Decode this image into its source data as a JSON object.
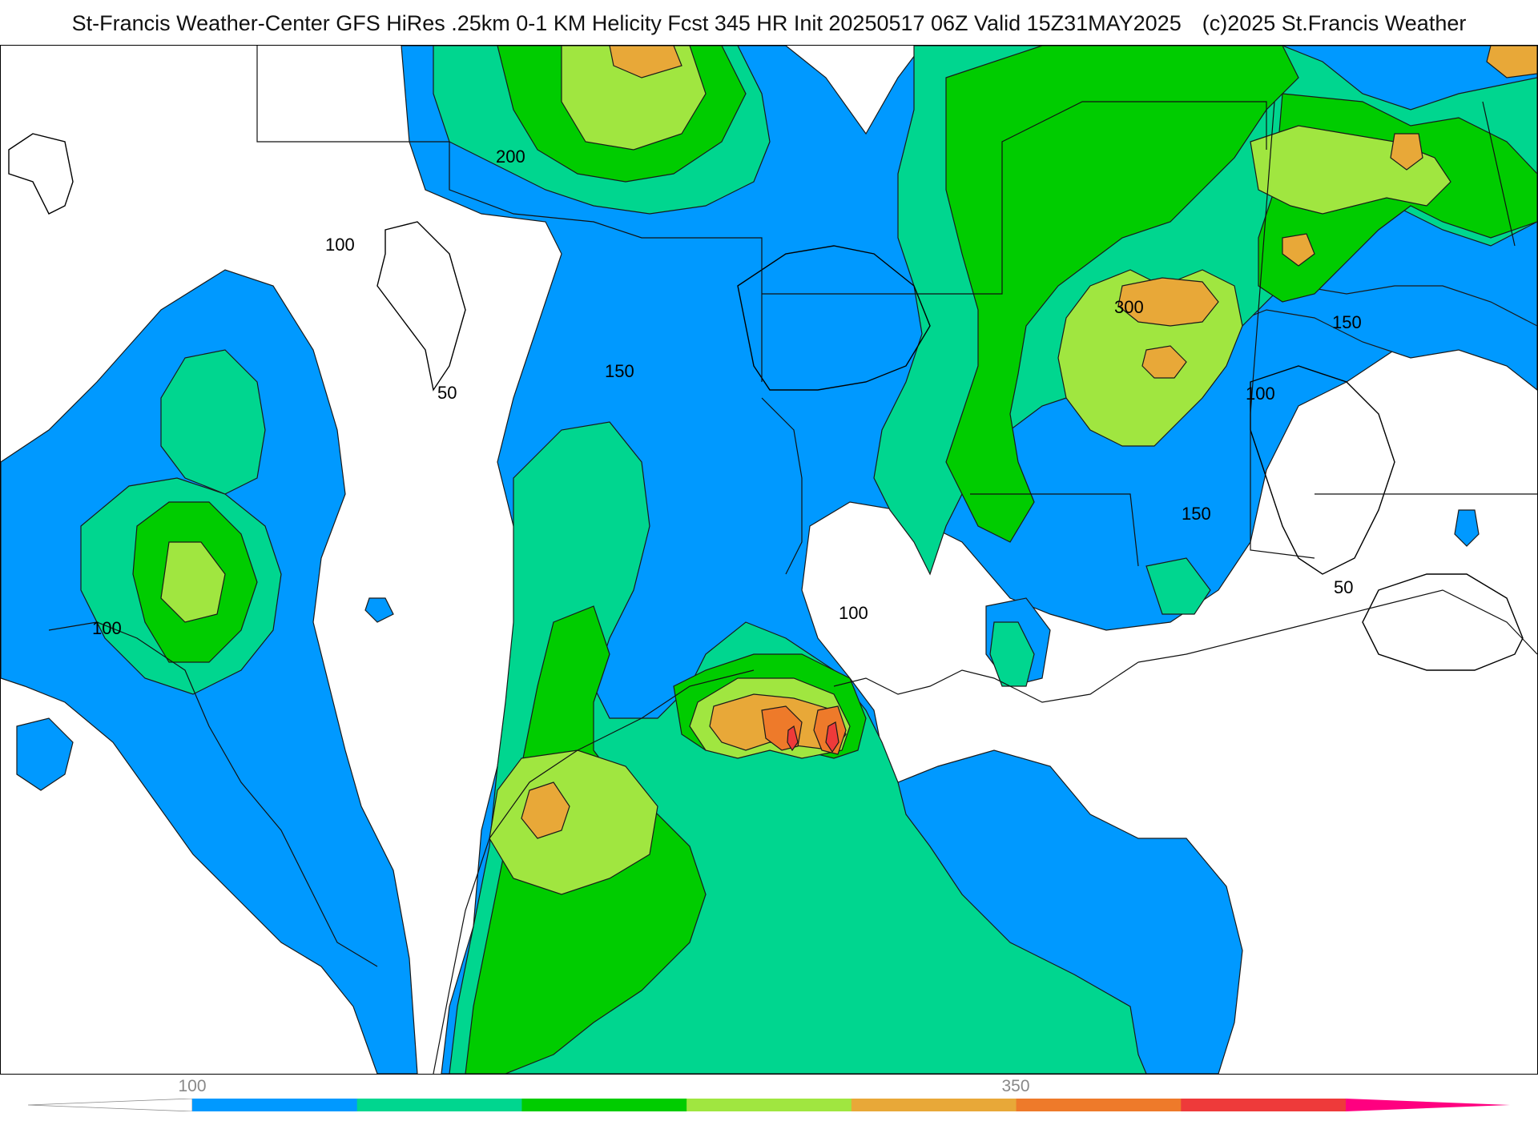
{
  "title": {
    "main": "St-Francis Weather-Center GFS HiRes .25km 0-1 KM Helicity Fcst 345 HR Init 20250517 06Z  Valid 15Z31MAY2025",
    "copyright": "(c)2025 St.Francis Weather"
  },
  "contour_labels": [
    "200",
    "100",
    "50",
    "150",
    "300",
    "150",
    "100",
    "150",
    "100",
    "50",
    "100"
  ],
  "colorbar": {
    "tick_labels": [
      "100",
      "350"
    ],
    "colors": [
      "#0099ff",
      "#00d68f",
      "#00cc00",
      "#a0e640",
      "#e8a838",
      "#ee7a2a",
      "#ee3a3a",
      "#ff0080"
    ]
  },
  "fill_colors": {
    "blue_100": "#0099ff",
    "teal_150": "#00d68f",
    "green_200": "#00cc00",
    "lime_250": "#a0e640",
    "orange_300": "#e8a838",
    "dkorange_350": "#ee7a2a",
    "red_400": "#ee3a3a"
  }
}
